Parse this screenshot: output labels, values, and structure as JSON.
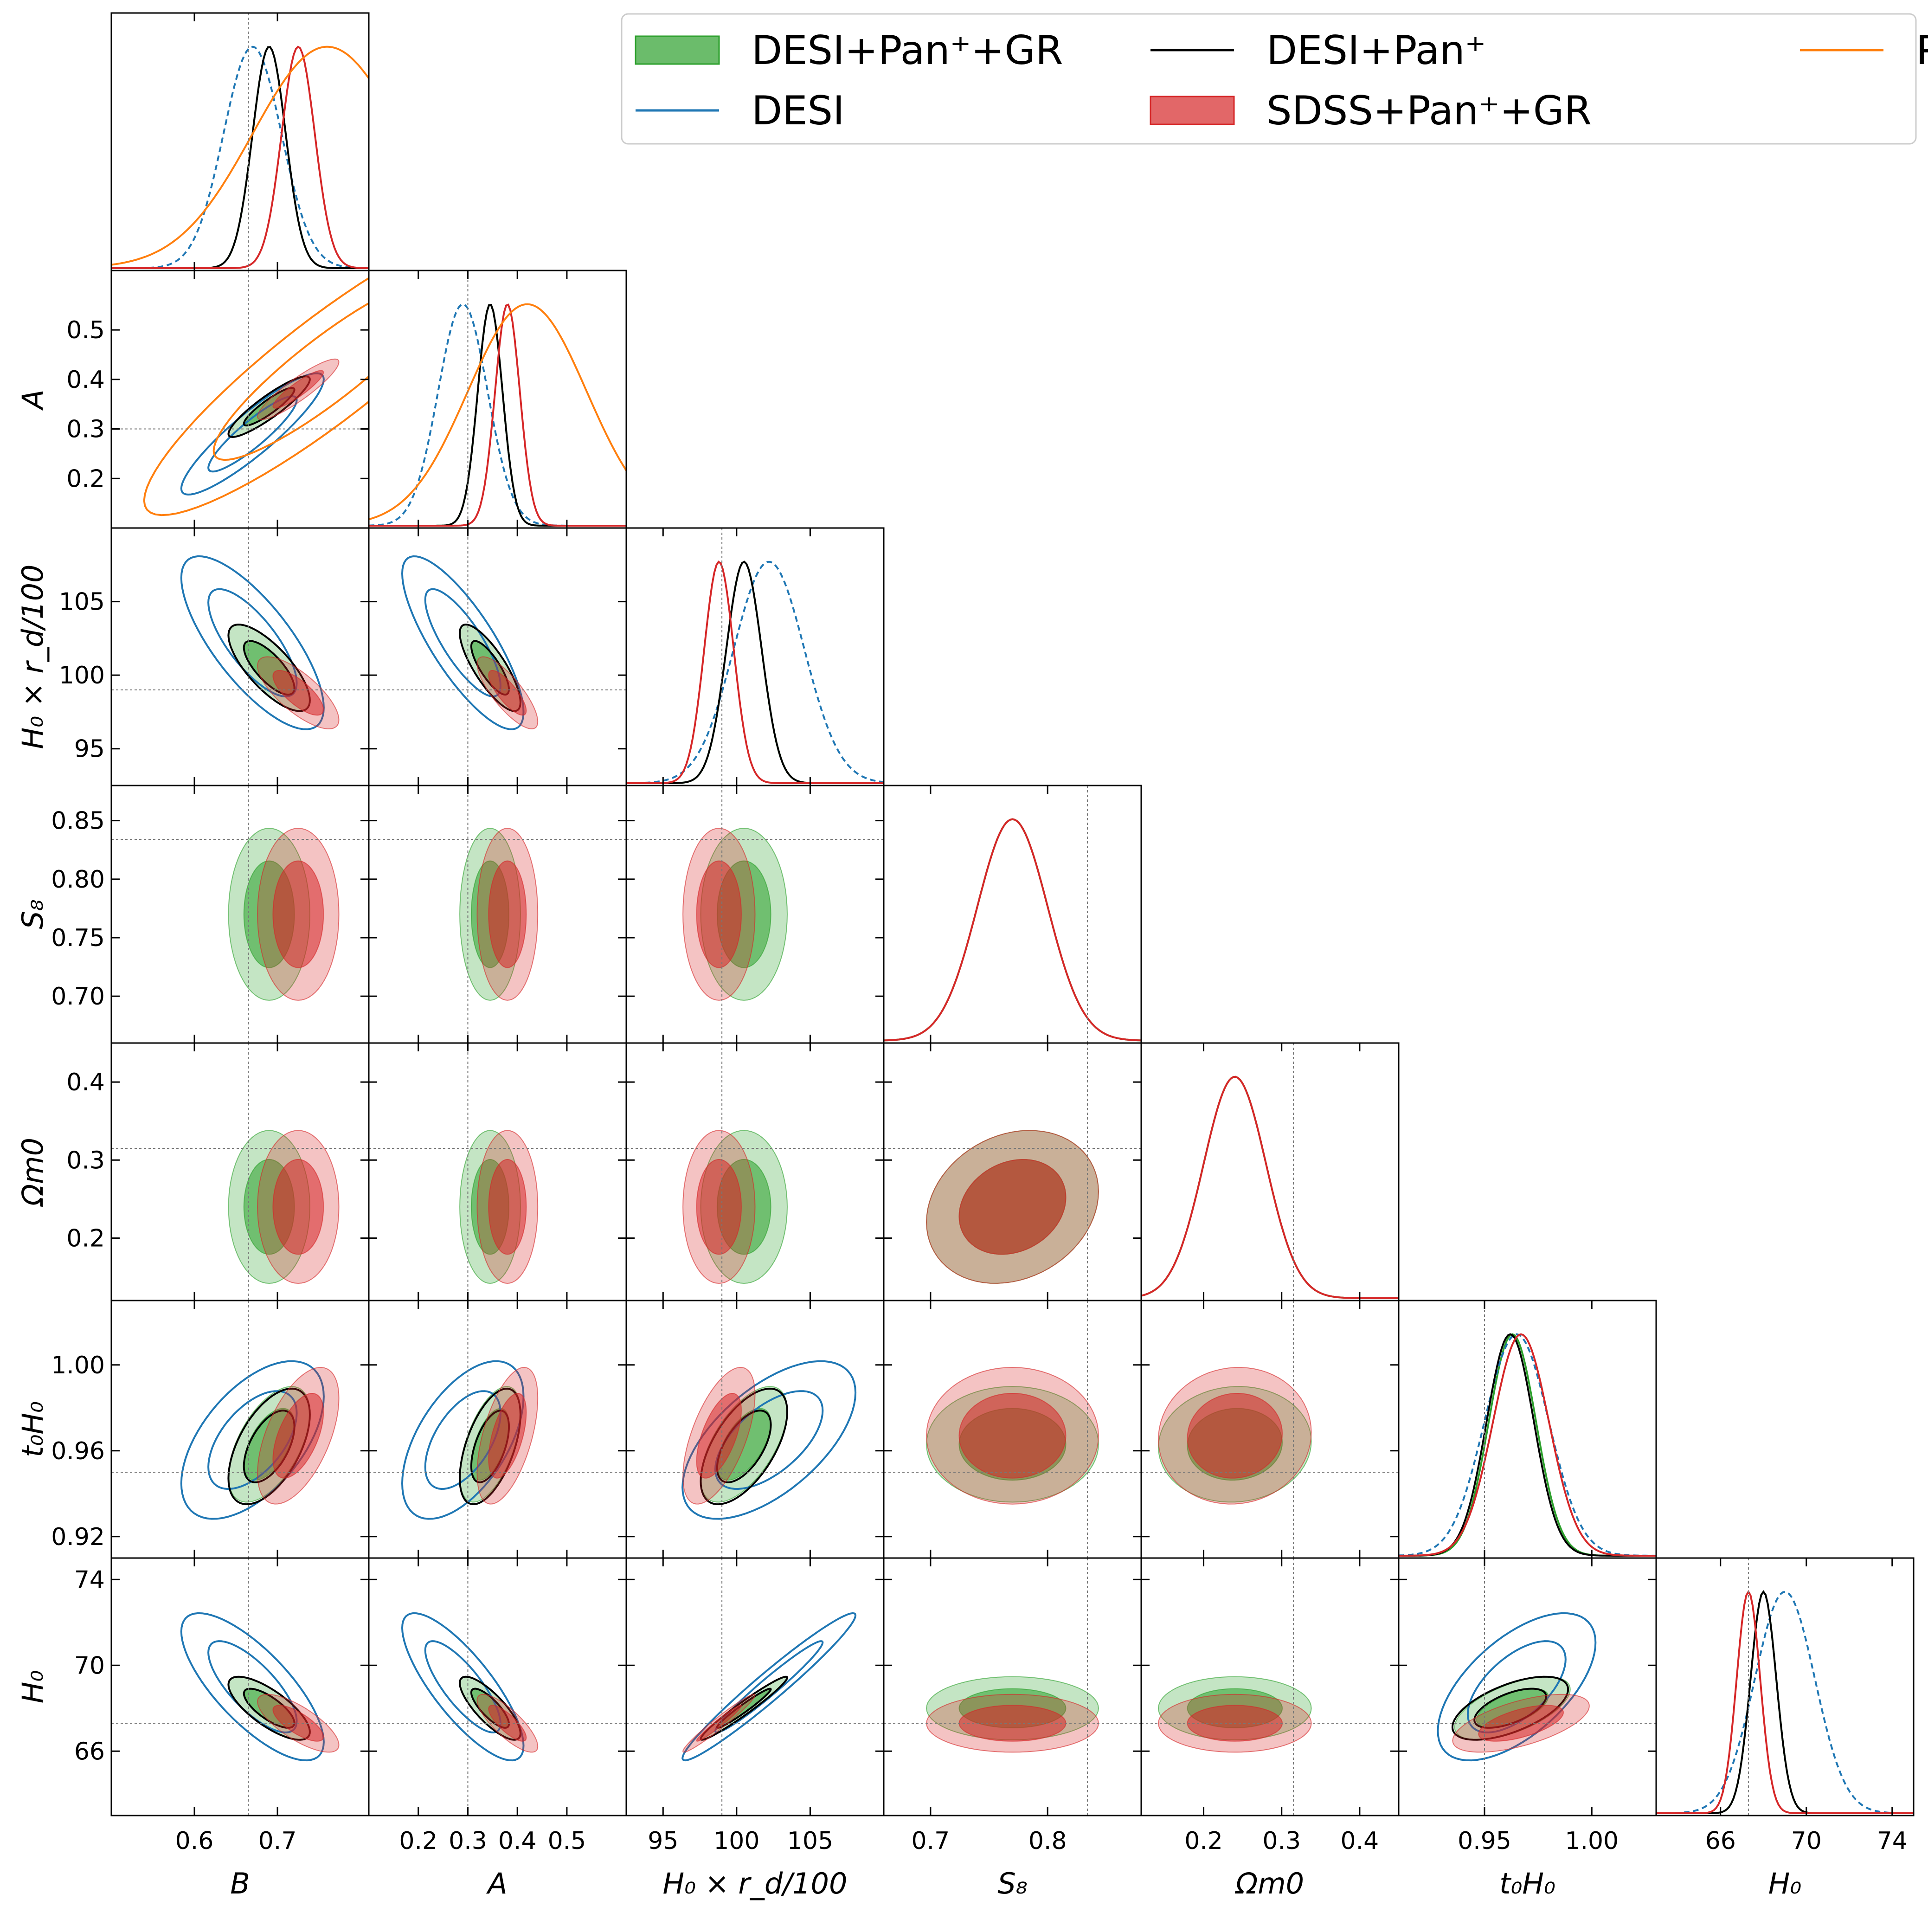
{
  "chart_data": {
    "type": "corner",
    "title": "",
    "parameters": [
      {
        "id": "B",
        "label": "B",
        "range": [
          0.5,
          0.81
        ],
        "ticks": [
          0.6,
          0.7
        ],
        "tick_labels": [
          "0.6",
          "0.7"
        ],
        "fiducial": 0.665
      },
      {
        "id": "A",
        "label": "A",
        "range": [
          0.1,
          0.62
        ],
        "ticks": [
          0.2,
          0.3,
          0.4,
          0.5
        ],
        "tick_labels": [
          "0.2",
          "0.3",
          "0.4",
          "0.5"
        ],
        "fiducial": 0.3
      },
      {
        "id": "Hrd",
        "label": "H₀ × r_d/100",
        "range": [
          92.5,
          110
        ],
        "ticks": [
          95,
          100,
          105
        ],
        "tick_labels": [
          "95",
          "100",
          "105"
        ],
        "fiducial": 99.0
      },
      {
        "id": "S8",
        "label": "S₈",
        "range": [
          0.66,
          0.88
        ],
        "ticks": [
          0.7,
          0.75,
          0.8,
          0.85
        ],
        "tick_labels": [
          "0.70",
          "0.75",
          "0.80",
          "0.85"
        ],
        "x_tick_labels": [
          "0.7",
          "0.8"
        ],
        "x_ticks": [
          0.7,
          0.8
        ],
        "fiducial": 0.834
      },
      {
        "id": "Om",
        "label": "Ωm0",
        "range": [
          0.12,
          0.45
        ],
        "ticks": [
          0.2,
          0.3,
          0.4
        ],
        "tick_labels": [
          "0.2",
          "0.3",
          "0.4"
        ],
        "fiducial": 0.315
      },
      {
        "id": "tH",
        "label": "t₀H₀",
        "range": [
          0.91,
          1.03
        ],
        "ticks": [
          0.92,
          0.96,
          1.0
        ],
        "tick_labels": [
          "0.92",
          "0.96",
          "1.00"
        ],
        "x_ticks": [
          0.95,
          1.0
        ],
        "x_tick_labels": [
          "0.95",
          "1.00"
        ],
        "fiducial": 0.95
      },
      {
        "id": "H0",
        "label": "H₀",
        "range": [
          63,
          75
        ],
        "ticks": [
          66,
          70,
          74
        ],
        "tick_labels": [
          "66",
          "70",
          "74"
        ],
        "fiducial": 67.3
      }
    ],
    "series": [
      {
        "name": "DESI+Pan⁺+GR",
        "style": "filled",
        "color": "#2ca02c",
        "mean": {
          "B": 0.69,
          "A": 0.345,
          "Hrd": 100.5,
          "S8": 0.77,
          "Om": 0.24,
          "tH": 0.963,
          "H0": 68.0
        },
        "sigma": {
          "B": 0.02,
          "A": 0.025,
          "Hrd": 1.2,
          "S8": 0.03,
          "Om": 0.04,
          "tH": 0.011,
          "H0": 0.6
        }
      },
      {
        "name": "DESI",
        "style": "dashed-line",
        "color": "#1f77b4",
        "mean": {
          "B": 0.67,
          "A": 0.29,
          "Hrd": 102.2,
          "tH": 0.965,
          "H0": 69.0
        },
        "sigma": {
          "B": 0.035,
          "A": 0.05,
          "Hrd": 2.4,
          "tH": 0.015,
          "H0": 1.4
        }
      },
      {
        "name": "DESI+Pan⁺",
        "style": "line",
        "color": "#000000",
        "mean": {
          "B": 0.69,
          "A": 0.345,
          "Hrd": 100.5,
          "tH": 0.962,
          "H0": 68.0
        },
        "sigma": {
          "B": 0.02,
          "A": 0.025,
          "Hrd": 1.2,
          "tH": 0.011,
          "H0": 0.6
        }
      },
      {
        "name": "SDSS+Pan⁺+GR",
        "style": "filled",
        "color": "#d62728",
        "mean": {
          "B": 0.725,
          "A": 0.38,
          "Hrd": 98.8,
          "S8": 0.77,
          "Om": 0.24,
          "tH": 0.967,
          "H0": 67.3
        },
        "sigma": {
          "B": 0.02,
          "A": 0.025,
          "Hrd": 1.0,
          "S8": 0.03,
          "Om": 0.04,
          "tH": 0.013,
          "H0": 0.55
        }
      },
      {
        "name": "Pan⁺",
        "style": "line",
        "color": "#ff7f0e",
        "mean": {
          "B": 0.76,
          "A": 0.42
        },
        "sigma": {
          "B": 0.09,
          "A": 0.12
        }
      }
    ],
    "legend": {
      "position": "top-right",
      "entries": [
        "DESI+Pan⁺+GR",
        "DESI+Pan⁺",
        "Pan⁺",
        "DESI",
        "SDSS+Pan⁺+GR"
      ]
    }
  }
}
